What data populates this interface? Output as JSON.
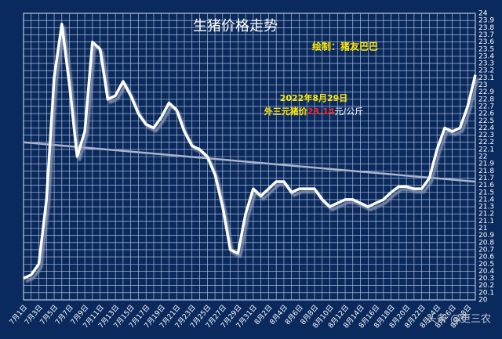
{
  "chart_data": {
    "type": "line",
    "title": "生猪价格走势",
    "subtitle": "绘制：猪友巴巴",
    "annotation": {
      "date": "2022年8月29日",
      "prefix": "外三元猪价",
      "value": "23.14",
      "suffix": "元/公斤"
    },
    "watermark": "头条 @更三农",
    "categories": [
      "7月1日",
      null,
      "7月3日",
      null,
      "7月5日",
      null,
      "7月7日",
      null,
      "7月9日",
      null,
      "7月11日",
      null,
      "7月13日",
      null,
      "7月15日",
      null,
      "7月17日",
      null,
      "7月19日",
      null,
      "7月21日",
      null,
      "7月23日",
      null,
      "7月25日",
      null,
      "7月27日",
      null,
      "7月29日",
      null,
      "7月31日",
      null,
      "8月2日",
      null,
      "8月4日",
      null,
      "8月6日",
      null,
      "8月8日",
      null,
      "8月10日",
      null,
      "8月12日",
      null,
      "8月14日",
      null,
      "8月16日",
      null,
      "8月18日",
      null,
      "8月20日",
      null,
      "8月22日",
      null,
      "8月24日",
      null,
      "8月26日",
      null,
      "8月28日",
      null
    ],
    "series": [
      {
        "name": "外三元猪价",
        "color": "#ffffff",
        "values": [
          20.3,
          20.35,
          20.5,
          21.4,
          23.1,
          23.85,
          23.0,
          22.0,
          22.35,
          23.6,
          23.5,
          22.8,
          22.85,
          23.05,
          22.85,
          22.6,
          22.45,
          22.4,
          22.55,
          22.75,
          22.65,
          22.35,
          22.15,
          22.1,
          22.0,
          21.75,
          21.3,
          20.7,
          20.65,
          21.2,
          21.55,
          21.45,
          21.55,
          21.65,
          21.65,
          21.5,
          21.55,
          21.55,
          21.55,
          21.4,
          21.3,
          21.35,
          21.4,
          21.4,
          21.35,
          21.3,
          21.35,
          21.4,
          21.5,
          21.58,
          21.58,
          21.55,
          21.55,
          21.7,
          22.1,
          22.4,
          22.35,
          22.4,
          22.7,
          23.14
        ]
      }
    ],
    "trendline": {
      "color": "#aab4cc",
      "start": 22.2,
      "end": 21.65
    },
    "ylim": [
      20,
      24
    ],
    "yticks": [
      20,
      20.1,
      20.2,
      20.3,
      20.4,
      20.5,
      20.6,
      20.7,
      20.8,
      20.9,
      21,
      21.1,
      21.2,
      21.3,
      21.4,
      21.5,
      21.6,
      21.7,
      21.8,
      21.9,
      22,
      22.1,
      22.2,
      22.3,
      22.4,
      22.5,
      22.6,
      22.7,
      22.8,
      22.9,
      23,
      23.1,
      23.2,
      23.3,
      23.4,
      23.5,
      23.6,
      23.7,
      23.8,
      23.9,
      24
    ],
    "grid": true
  }
}
